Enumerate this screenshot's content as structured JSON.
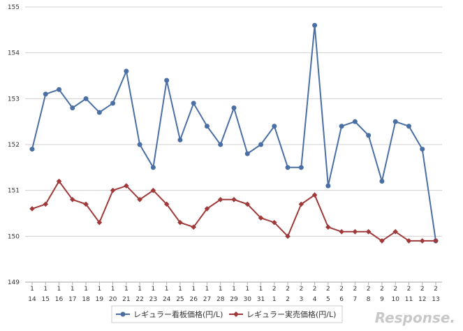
{
  "chart_data": {
    "type": "line",
    "categories": [
      [
        "1",
        "14"
      ],
      [
        "1",
        "15"
      ],
      [
        "1",
        "16"
      ],
      [
        "1",
        "17"
      ],
      [
        "1",
        "18"
      ],
      [
        "1",
        "19"
      ],
      [
        "1",
        "20"
      ],
      [
        "1",
        "21"
      ],
      [
        "1",
        "22"
      ],
      [
        "1",
        "23"
      ],
      [
        "1",
        "24"
      ],
      [
        "1",
        "25"
      ],
      [
        "1",
        "26"
      ],
      [
        "1",
        "27"
      ],
      [
        "1",
        "28"
      ],
      [
        "1",
        "29"
      ],
      [
        "1",
        "30"
      ],
      [
        "1",
        "31"
      ],
      [
        "2",
        "1"
      ],
      [
        "2",
        "2"
      ],
      [
        "2",
        "3"
      ],
      [
        "2",
        "4"
      ],
      [
        "2",
        "5"
      ],
      [
        "2",
        "6"
      ],
      [
        "2",
        "7"
      ],
      [
        "2",
        "8"
      ],
      [
        "2",
        "9"
      ],
      [
        "2",
        "10"
      ],
      [
        "2",
        "11"
      ],
      [
        "2",
        "12"
      ],
      [
        "2",
        "13"
      ]
    ],
    "ylim": [
      149,
      155
    ],
    "yticks": [
      "149",
      "150",
      "151",
      "152",
      "153",
      "154",
      "155"
    ],
    "grid": true,
    "legend_position": "bottom",
    "series": [
      {
        "name": "レギュラー看板価格(円/L)",
        "color": "#4a6fa5",
        "marker": "circle",
        "values": [
          151.9,
          153.1,
          153.2,
          152.8,
          153.0,
          152.7,
          152.9,
          153.6,
          152.0,
          151.5,
          153.4,
          152.1,
          152.9,
          152.4,
          152.0,
          152.8,
          151.8,
          152.0,
          152.4,
          151.5,
          151.5,
          154.6,
          151.1,
          152.4,
          152.5,
          152.2,
          151.2,
          152.5,
          152.4,
          151.9,
          149.9
        ]
      },
      {
        "name": "レギュラー実売価格(円/L)",
        "color": "#a03a3a",
        "marker": "diamond",
        "values": [
          150.6,
          150.7,
          151.2,
          150.8,
          150.7,
          150.3,
          151.0,
          151.1,
          150.8,
          151.0,
          150.7,
          150.3,
          150.2,
          150.6,
          150.8,
          150.8,
          150.7,
          150.4,
          150.3,
          150.0,
          150.7,
          150.9,
          150.2,
          150.1,
          150.1,
          150.1,
          149.9,
          150.1,
          149.9,
          149.9,
          149.9
        ]
      }
    ]
  },
  "watermark": "Response."
}
